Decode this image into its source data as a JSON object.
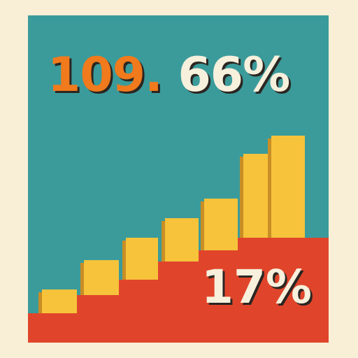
{
  "headline": {
    "part_orange": "109.",
    "part_cream": " 66%"
  },
  "bottom_percentage": "17%",
  "colors": {
    "background": "#f8efd6",
    "panel_teal": "#3b9b9b",
    "red_band": "#e0452b",
    "bar_yellow": "#f6c33b",
    "bar_shadow": "#c98e25",
    "text_orange": "#f07a1c",
    "text_cream": "#f7f0dc"
  },
  "steps": [
    {
      "level": 1
    },
    {
      "level": 2
    },
    {
      "level": 3
    },
    {
      "level": 4
    },
    {
      "level": 5
    },
    {
      "level": 6
    },
    {
      "level": 7
    },
    {
      "level": 8
    }
  ]
}
